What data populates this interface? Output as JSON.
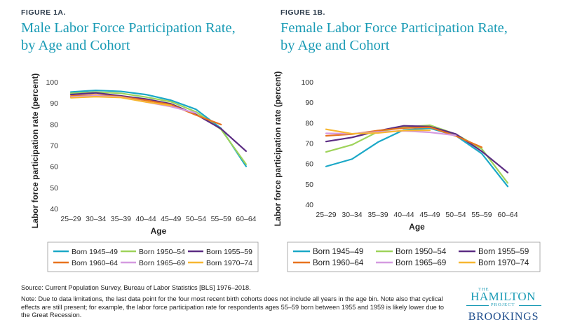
{
  "figure_a": {
    "label": "FIGURE 1A.",
    "title_line1": "Male Labor Force Participation Rate,",
    "title_line2": "by Age and Cohort"
  },
  "figure_b": {
    "label": "FIGURE 1B.",
    "title_line1": "Female Labor Force Participation Rate,",
    "title_line2": "by Age and Cohort"
  },
  "colors": {
    "Born 1945–49": "#1ba8c7",
    "Born 1950–54": "#9ed35a",
    "Born 1955–59": "#5b2c83",
    "Born 1960–64": "#e8731f",
    "Born 1965–69": "#d59ae0",
    "Born 1970–74": "#f7b731"
  },
  "chart_data": [
    {
      "type": "line",
      "title": "Male Labor Force Participation Rate, by Age and Cohort",
      "xlabel": "Age",
      "ylabel": "Labor force participation rate (percent)",
      "categories": [
        "25–29",
        "30–34",
        "35–39",
        "40–44",
        "45–49",
        "50–54",
        "55–59",
        "60–64"
      ],
      "yticks": [
        40,
        50,
        60,
        70,
        80,
        90,
        100
      ],
      "ylim": [
        40,
        100
      ],
      "grid": false,
      "legend": "bottom",
      "series": [
        {
          "name": "Born 1945–49",
          "values": [
            95.2,
            96.0,
            95.5,
            94.0,
            91.3,
            87.0,
            78.0,
            60.0
          ]
        },
        {
          "name": "Born 1950–54",
          "values": [
            94.6,
            95.2,
            94.6,
            92.8,
            90.6,
            85.8,
            77.5,
            61.0
          ]
        },
        {
          "name": "Born 1955–59",
          "values": [
            94.0,
            94.8,
            93.4,
            91.9,
            89.6,
            84.6,
            77.8,
            67.2
          ]
        },
        {
          "name": "Born 1960–64",
          "values": [
            93.3,
            93.8,
            93.0,
            91.3,
            89.2,
            84.3,
            79.8,
            null
          ]
        },
        {
          "name": "Born 1965–69",
          "values": [
            92.9,
            93.4,
            92.8,
            90.5,
            88.3,
            85.3,
            null,
            null
          ]
        },
        {
          "name": "Born 1970–74",
          "values": [
            92.5,
            93.0,
            92.6,
            90.5,
            88.8,
            null,
            null,
            null
          ]
        }
      ]
    },
    {
      "type": "line",
      "title": "Female Labor Force Participation Rate, by Age and Cohort",
      "xlabel": "Age",
      "ylabel": "Labor force participation rate (percent)",
      "categories": [
        "25–29",
        "30–34",
        "35–39",
        "40–44",
        "45–49",
        "50–54",
        "55–59",
        "60–64"
      ],
      "yticks": [
        40,
        50,
        60,
        70,
        80,
        90,
        100
      ],
      "ylim": [
        40,
        100
      ],
      "grid": false,
      "legend": "bottom",
      "series": [
        {
          "name": "Born 1945–49",
          "values": [
            58.6,
            62.2,
            70.5,
            76.5,
            77.3,
            73.7,
            64.9,
            48.8
          ]
        },
        {
          "name": "Born 1950–54",
          "values": [
            65.7,
            69.2,
            75.6,
            77.8,
            78.8,
            74.4,
            67.2,
            50.5
          ]
        },
        {
          "name": "Born 1955–59",
          "values": [
            70.8,
            72.8,
            76.0,
            78.5,
            78.1,
            74.5,
            66.0,
            55.6
          ]
        },
        {
          "name": "Born 1960–64",
          "values": [
            73.6,
            74.4,
            76.2,
            77.4,
            77.8,
            73.5,
            68.0,
            null
          ]
        },
        {
          "name": "Born 1965–69",
          "values": [
            74.8,
            74.6,
            75.5,
            76.0,
            75.3,
            73.8,
            null,
            null
          ]
        },
        {
          "name": "Born 1970–74",
          "values": [
            76.8,
            74.6,
            75.0,
            76.2,
            76.3,
            null,
            null,
            null
          ]
        }
      ]
    }
  ],
  "footer": {
    "source": "Source: Current Population Survey, Bureau of Labor Statistics [BLS] 1976–2018.",
    "note": "Note: Due to data limitations, the last data point for the four most recent birth cohorts does not include all years in the age bin. Note also that cyclical effects are still present; for example, the labor force participation rate for respondents ages 55–59 born between 1955 and 1959 is likely lower due to the Great Recession."
  },
  "logo": {
    "the": "THE",
    "hamilton": "HAMILTON",
    "project": "PROJECT",
    "brookings": "BROOKINGS"
  }
}
